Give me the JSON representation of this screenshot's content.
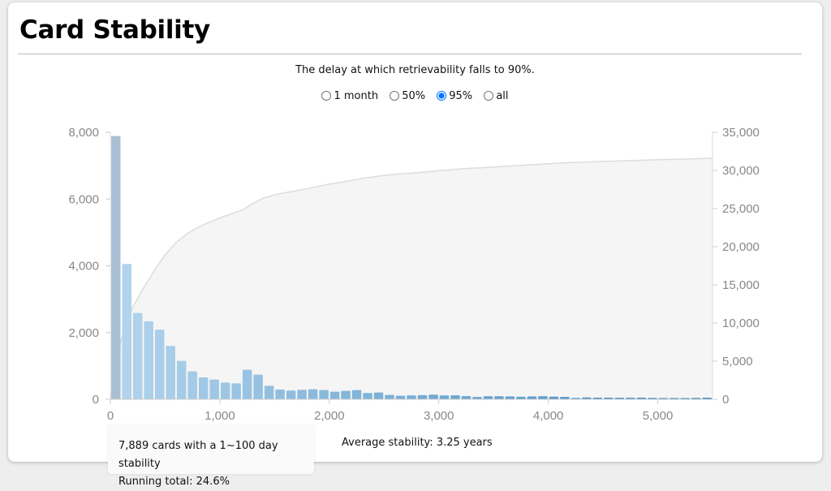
{
  "title": "Card Stability",
  "subtitle": "The delay at which retrievability falls to 90%.",
  "range_options": [
    {
      "label": "1 month",
      "selected": false
    },
    {
      "label": "50%",
      "selected": false
    },
    {
      "label": "95%",
      "selected": true
    },
    {
      "label": "all",
      "selected": false
    }
  ],
  "average": {
    "label": "Average stability:",
    "value": "3.25 years"
  },
  "tooltip": {
    "line1": "7,889 cards with a 1~100 day stability",
    "line2": "Running total: 24.6%"
  },
  "colors": {
    "bar_light": "#b3d4ec",
    "bar_dark": "#3a86bf",
    "bar_hover": "#a9c0d4",
    "cumulative_fill": "#f5f5f5",
    "cumulative_line": "#dddddd",
    "accent": "#0a6ee0"
  },
  "chart_data": {
    "type": "bar",
    "bin_width_days": 100,
    "x_start": 0,
    "xlim": [
      0,
      5500
    ],
    "ylim": [
      0,
      8000
    ],
    "y2lim": [
      0,
      35000
    ],
    "x_ticks": [
      "0",
      "1,000",
      "2,000",
      "3,000",
      "4,000",
      "5,000"
    ],
    "y_ticks": [
      "0",
      "2,000",
      "4,000",
      "6,000",
      "8,000"
    ],
    "y2_ticks": [
      "0",
      "5,000",
      "10,000",
      "15,000",
      "20,000",
      "25,000",
      "30,000",
      "35,000"
    ],
    "values": [
      7889,
      4055,
      2587,
      2336,
      2084,
      1598,
      1152,
      835,
      657,
      592,
      503,
      478,
      884,
      738,
      405,
      292,
      260,
      284,
      300,
      276,
      227,
      251,
      276,
      187,
      203,
      130,
      105,
      114,
      125,
      140,
      115,
      120,
      95,
      70,
      90,
      90,
      85,
      75,
      85,
      90,
      80,
      70,
      40,
      55,
      50,
      50,
      45,
      45,
      50,
      40,
      35,
      35,
      35,
      40,
      45
    ],
    "cumulative_series": "running total of values (right axis)",
    "hovered_bin": 0,
    "grid": false
  }
}
